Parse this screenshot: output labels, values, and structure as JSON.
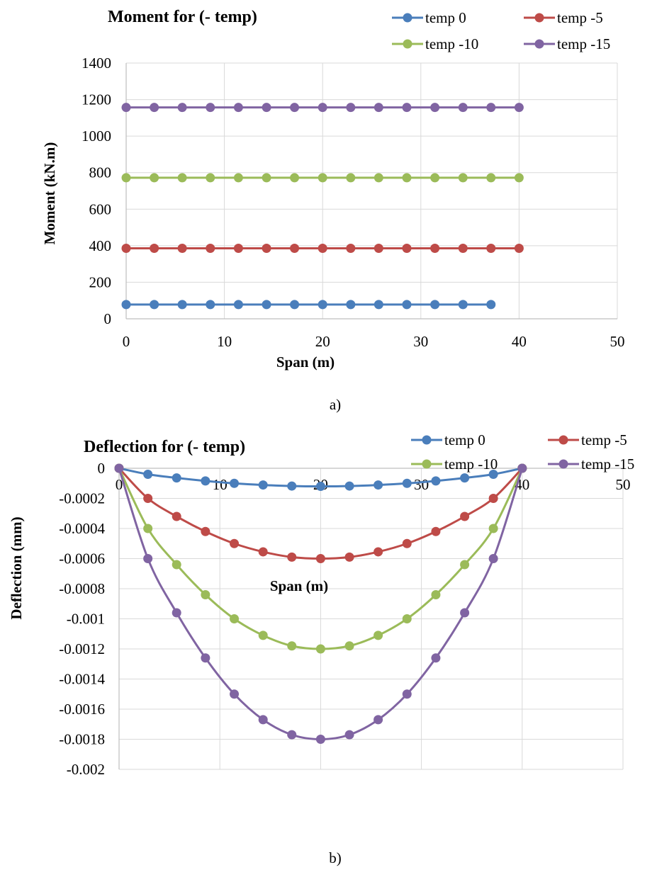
{
  "chart_data": [
    {
      "type": "line",
      "title": "Moment for (- temp)",
      "xlabel": "Span (m)",
      "ylabel": "Moment (kN.m)",
      "xlim": [
        0,
        50
      ],
      "ylim": [
        0,
        1400
      ],
      "xticks": [
        "0",
        "10",
        "20",
        "30",
        "40",
        "50"
      ],
      "yticks": [
        "0",
        "200",
        "400",
        "600",
        "800",
        "1000",
        "1200",
        "1400"
      ],
      "grid": true,
      "legend_position": "top-right",
      "caption": "a)",
      "series": [
        {
          "name": "temp 0",
          "color": "#4a7ebb",
          "x": [
            0,
            2.86,
            5.71,
            8.57,
            11.43,
            14.29,
            17.14,
            20,
            22.86,
            25.71,
            28.57,
            31.43,
            34.29,
            37.14
          ],
          "y": [
            78,
            78,
            78,
            78,
            78,
            78,
            78,
            78,
            78,
            78,
            78,
            78,
            78,
            78
          ]
        },
        {
          "name": "temp -5",
          "color": "#be4b48",
          "x": [
            0,
            2.86,
            5.71,
            8.57,
            11.43,
            14.29,
            17.14,
            20,
            22.86,
            25.71,
            28.57,
            31.43,
            34.29,
            37.14,
            40
          ],
          "y": [
            386,
            386,
            386,
            386,
            386,
            386,
            386,
            386,
            386,
            386,
            386,
            386,
            386,
            386,
            386
          ]
        },
        {
          "name": "temp -10",
          "color": "#9bbb59",
          "x": [
            0,
            2.86,
            5.71,
            8.57,
            11.43,
            14.29,
            17.14,
            20,
            22.86,
            25.71,
            28.57,
            31.43,
            34.29,
            37.14,
            40
          ],
          "y": [
            772,
            772,
            772,
            772,
            772,
            772,
            772,
            772,
            772,
            772,
            772,
            772,
            772,
            772,
            772
          ]
        },
        {
          "name": "temp -15",
          "color": "#8064a2",
          "x": [
            0,
            2.86,
            5.71,
            8.57,
            11.43,
            14.29,
            17.14,
            20,
            22.86,
            25.71,
            28.57,
            31.43,
            34.29,
            37.14,
            40
          ],
          "y": [
            1157,
            1157,
            1157,
            1157,
            1157,
            1157,
            1157,
            1157,
            1157,
            1157,
            1157,
            1157,
            1157,
            1157,
            1157
          ]
        }
      ]
    },
    {
      "type": "line",
      "title": "Deflection for (- temp)",
      "xlabel": "Span (m)",
      "ylabel": "Deflection (mm)",
      "xlim": [
        0,
        50
      ],
      "ylim": [
        -0.002,
        0
      ],
      "xticks": [
        "0",
        "10",
        "20",
        "30",
        "40",
        "50"
      ],
      "yticks": [
        "0",
        "-0.0002",
        "-0.0004",
        "-0.0006",
        "-0.0008",
        "-0.001",
        "-0.0012",
        "-0.0014",
        "-0.0016",
        "-0.0018",
        "-0.002"
      ],
      "grid": true,
      "legend_position": "top-right",
      "caption": "b)",
      "series": [
        {
          "name": "temp 0",
          "color": "#4a7ebb",
          "x": [
            0,
            2.86,
            5.71,
            8.57,
            11.43,
            14.29,
            17.14,
            20,
            22.86,
            25.71,
            28.57,
            31.43,
            34.29,
            37.14,
            40
          ],
          "y": [
            0,
            -4e-05,
            -6.4e-05,
            -8.4e-05,
            -0.0001,
            -0.000111,
            -0.000118,
            -0.00012,
            -0.000118,
            -0.000111,
            -0.0001,
            -8.4e-05,
            -6.4e-05,
            -4e-05,
            0
          ]
        },
        {
          "name": "temp -5",
          "color": "#be4b48",
          "x": [
            0,
            2.86,
            5.71,
            8.57,
            11.43,
            14.29,
            17.14,
            20,
            22.86,
            25.71,
            28.57,
            31.43,
            34.29,
            37.14,
            40
          ],
          "y": [
            0,
            -0.0002,
            -0.00032,
            -0.00042,
            -0.0005,
            -0.000555,
            -0.00059,
            -0.0006,
            -0.00059,
            -0.000555,
            -0.0005,
            -0.00042,
            -0.00032,
            -0.0002,
            0
          ]
        },
        {
          "name": "temp -10",
          "color": "#9bbb59",
          "x": [
            0,
            2.86,
            5.71,
            8.57,
            11.43,
            14.29,
            17.14,
            20,
            22.86,
            25.71,
            28.57,
            31.43,
            34.29,
            37.14,
            40
          ],
          "y": [
            0,
            -0.0004,
            -0.00064,
            -0.00084,
            -0.001,
            -0.00111,
            -0.00118,
            -0.0012,
            -0.00118,
            -0.00111,
            -0.001,
            -0.00084,
            -0.00064,
            -0.0004,
            0
          ]
        },
        {
          "name": "temp -15",
          "color": "#8064a2",
          "x": [
            0,
            2.86,
            5.71,
            8.57,
            11.43,
            14.29,
            17.14,
            20,
            22.86,
            25.71,
            28.57,
            31.43,
            34.29,
            37.14,
            40
          ],
          "y": [
            0,
            -0.0006,
            -0.00096,
            -0.00126,
            -0.0015,
            -0.00167,
            -0.00177,
            -0.0018,
            -0.00177,
            -0.00167,
            -0.0015,
            -0.00126,
            -0.00096,
            -0.0006,
            0
          ]
        }
      ]
    }
  ]
}
